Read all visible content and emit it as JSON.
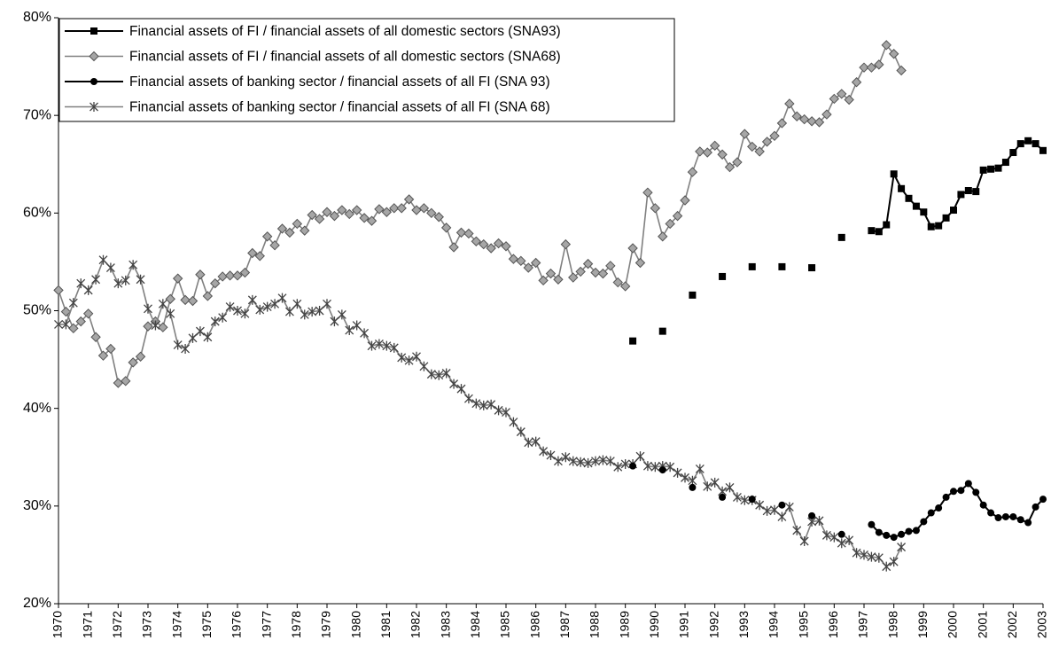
{
  "chart_data": {
    "type": "line",
    "x": [
      1970,
      1970.25,
      1970.5,
      1970.75,
      1971,
      1971.25,
      1971.5,
      1971.75,
      1972,
      1972.25,
      1972.5,
      1972.75,
      1973,
      1973.25,
      1973.5,
      1973.75,
      1974,
      1974.25,
      1974.5,
      1974.75,
      1975,
      1975.25,
      1975.5,
      1975.75,
      1976,
      1976.25,
      1976.5,
      1976.75,
      1977,
      1977.25,
      1977.5,
      1977.75,
      1978,
      1978.25,
      1978.5,
      1978.75,
      1979,
      1979.25,
      1979.5,
      1979.75,
      1980,
      1980.25,
      1980.5,
      1980.75,
      1981,
      1981.25,
      1981.5,
      1981.75,
      1982,
      1982.25,
      1982.5,
      1982.75,
      1983,
      1983.25,
      1983.5,
      1983.75,
      1984,
      1984.25,
      1984.5,
      1984.75,
      1985,
      1985.25,
      1985.5,
      1985.75,
      1986,
      1986.25,
      1986.5,
      1986.75,
      1987,
      1987.25,
      1987.5,
      1987.75,
      1988,
      1988.25,
      1988.5,
      1988.75,
      1989,
      1989.25,
      1989.5,
      1989.75,
      1990,
      1990.25,
      1990.5,
      1990.75,
      1991,
      1991.25,
      1991.5,
      1991.75,
      1992,
      1992.25,
      1992.5,
      1992.75,
      1993,
      1993.25,
      1993.5,
      1993.75,
      1994,
      1994.25,
      1994.5,
      1994.75,
      1995,
      1995.25,
      1995.5,
      1995.75,
      1996,
      1996.25,
      1996.5,
      1996.75,
      1997,
      1997.25,
      1997.5,
      1997.75,
      1998,
      1998.25,
      1998.5,
      1998.75,
      1999,
      1999.25,
      1999.5,
      1999.75,
      2000,
      2000.25,
      2000.5,
      2000.75,
      2001,
      2001.25,
      2001.5,
      2001.75,
      2002,
      2002.25,
      2002.5,
      2002.75,
      2003
    ],
    "xlim": [
      1970,
      2003
    ],
    "xticks": [
      1970,
      1971,
      1972,
      1973,
      1974,
      1975,
      1976,
      1977,
      1978,
      1979,
      1980,
      1981,
      1982,
      1983,
      1984,
      1985,
      1986,
      1987,
      1988,
      1989,
      1990,
      1991,
      1992,
      1993,
      1994,
      1995,
      1996,
      1997,
      1998,
      1999,
      2000,
      2001,
      2002,
      2003
    ],
    "ylim": [
      20,
      80
    ],
    "yticks": [
      {
        "value": 20,
        "label": "20%"
      },
      {
        "value": 30,
        "label": "30%"
      },
      {
        "value": 40,
        "label": "40%"
      },
      {
        "value": 50,
        "label": "50%"
      },
      {
        "value": 60,
        "label": "60%"
      },
      {
        "value": 70,
        "label": "70%"
      },
      {
        "value": 80,
        "label": "80%"
      }
    ],
    "legend": "upper left",
    "series": [
      {
        "name": "Financial assets of FI / financial assets of all domestic sectors (SNA93)",
        "color": "#000000",
        "marker": "square",
        "values": [
          null,
          null,
          null,
          null,
          null,
          null,
          null,
          null,
          null,
          null,
          null,
          null,
          null,
          null,
          null,
          null,
          null,
          null,
          null,
          null,
          null,
          null,
          null,
          null,
          null,
          null,
          null,
          null,
          null,
          null,
          null,
          null,
          null,
          null,
          null,
          null,
          null,
          null,
          null,
          null,
          null,
          null,
          null,
          null,
          null,
          null,
          null,
          null,
          null,
          null,
          null,
          null,
          null,
          null,
          null,
          null,
          null,
          null,
          null,
          null,
          null,
          null,
          null,
          null,
          null,
          null,
          null,
          null,
          null,
          null,
          null,
          null,
          null,
          null,
          null,
          null,
          null,
          46.9,
          null,
          null,
          null,
          47.9,
          null,
          null,
          null,
          51.6,
          null,
          null,
          null,
          53.5,
          null,
          null,
          null,
          54.5,
          null,
          null,
          null,
          54.5,
          null,
          null,
          null,
          54.4,
          null,
          null,
          null,
          57.5,
          null,
          null,
          null,
          58.2,
          58.1,
          58.8,
          64.0,
          62.5,
          61.5,
          60.7,
          60.1,
          58.6,
          58.7,
          59.5,
          60.3,
          61.9,
          62.3,
          62.2,
          64.4,
          64.5,
          64.6,
          65.2,
          66.2,
          67.1,
          67.4,
          67.1,
          66.4
        ]
      },
      {
        "name": "Financial assets of FI / financial assets of all domestic sectors (SNA68)",
        "color": "#808080",
        "marker": "diamond",
        "values": [
          52.1,
          49.9,
          48.2,
          48.9,
          49.7,
          47.3,
          45.4,
          46.1,
          42.6,
          42.8,
          44.7,
          45.3,
          48.4,
          48.9,
          48.3,
          51.2,
          53.3,
          51.1,
          51.0,
          53.7,
          51.5,
          52.8,
          53.5,
          53.6,
          53.6,
          53.9,
          55.9,
          55.6,
          57.6,
          56.7,
          58.4,
          58.0,
          58.9,
          58.2,
          59.8,
          59.4,
          60.1,
          59.7,
          60.3,
          59.9,
          60.3,
          59.5,
          59.2,
          60.4,
          60.1,
          60.5,
          60.5,
          61.4,
          60.3,
          60.5,
          60.0,
          59.6,
          58.5,
          56.5,
          58.0,
          57.9,
          57.1,
          56.8,
          56.4,
          56.9,
          56.6,
          55.3,
          55.1,
          54.4,
          54.9,
          53.1,
          53.8,
          53.2,
          56.8,
          53.4,
          54.0,
          54.8,
          53.9,
          53.8,
          54.6,
          52.9,
          52.5,
          56.4,
          54.9,
          62.1,
          60.5,
          57.6,
          58.9,
          59.7,
          61.3,
          64.2,
          66.3,
          66.2,
          66.9,
          66.0,
          64.7,
          65.2,
          68.1,
          66.8,
          66.3,
          67.3,
          67.9,
          69.2,
          71.2,
          69.9,
          69.6,
          69.4,
          69.3,
          70.1,
          71.7,
          72.2,
          71.6,
          73.4,
          74.9,
          74.9,
          75.2,
          77.2,
          76.3,
          74.6,
          null,
          null,
          null,
          null,
          null,
          null,
          null,
          null,
          null,
          null,
          null,
          null,
          null,
          null,
          null,
          null,
          null,
          null,
          null
        ]
      },
      {
        "name": "Financial assets of banking sector / financial assets of all FI (SNA 93)",
        "color": "#000000",
        "marker": "circle",
        "values": [
          null,
          null,
          null,
          null,
          null,
          null,
          null,
          null,
          null,
          null,
          null,
          null,
          null,
          null,
          null,
          null,
          null,
          null,
          null,
          null,
          null,
          null,
          null,
          null,
          null,
          null,
          null,
          null,
          null,
          null,
          null,
          null,
          null,
          null,
          null,
          null,
          null,
          null,
          null,
          null,
          null,
          null,
          null,
          null,
          null,
          null,
          null,
          null,
          null,
          null,
          null,
          null,
          null,
          null,
          null,
          null,
          null,
          null,
          null,
          null,
          null,
          null,
          null,
          null,
          null,
          null,
          null,
          null,
          null,
          null,
          null,
          null,
          null,
          null,
          null,
          null,
          null,
          34.1,
          null,
          null,
          null,
          33.7,
          null,
          null,
          null,
          31.9,
          null,
          null,
          null,
          30.9,
          null,
          null,
          null,
          30.7,
          null,
          null,
          null,
          30.1,
          null,
          null,
          null,
          29.0,
          null,
          null,
          null,
          27.1,
          null,
          null,
          null,
          28.1,
          27.3,
          27.0,
          26.8,
          27.1,
          27.4,
          27.5,
          28.4,
          29.3,
          29.8,
          30.9,
          31.5,
          31.6,
          32.3,
          31.4,
          30.1,
          29.3,
          28.8,
          28.9,
          28.9,
          28.6,
          28.3,
          29.9,
          30.7
        ]
      },
      {
        "name": "Financial assets of banking sector / financial assets of all FI (SNA 68)",
        "color": "#808080",
        "marker": "star",
        "values": [
          48.6,
          48.6,
          50.8,
          52.8,
          52.1,
          53.2,
          55.2,
          54.4,
          52.8,
          53.1,
          54.7,
          53.2,
          50.2,
          48.5,
          50.7,
          49.7,
          46.5,
          46.1,
          47.2,
          47.9,
          47.3,
          48.9,
          49.3,
          50.4,
          50.0,
          49.7,
          51.1,
          50.1,
          50.4,
          50.7,
          51.3,
          49.9,
          50.7,
          49.6,
          49.9,
          50.0,
          50.7,
          48.9,
          49.6,
          48.0,
          48.5,
          47.7,
          46.4,
          46.6,
          46.4,
          46.2,
          45.2,
          44.9,
          45.3,
          44.3,
          43.5,
          43.4,
          43.6,
          42.5,
          42.0,
          41.0,
          40.5,
          40.3,
          40.4,
          39.8,
          39.6,
          38.6,
          37.6,
          36.5,
          36.6,
          35.6,
          35.2,
          34.6,
          35.0,
          34.6,
          34.5,
          34.4,
          34.6,
          34.7,
          34.6,
          34.0,
          34.3,
          34.3,
          35.1,
          34.1,
          34.0,
          34.1,
          34.0,
          33.4,
          32.9,
          32.6,
          33.8,
          32.0,
          32.4,
          31.5,
          31.9,
          30.9,
          30.6,
          30.6,
          30.1,
          29.5,
          29.6,
          28.9,
          29.9,
          27.5,
          26.4,
          28.4,
          28.5,
          27.0,
          26.8,
          26.2,
          26.5,
          25.2,
          25.0,
          24.8,
          24.7,
          23.8,
          24.3,
          25.8,
          null,
          null,
          null,
          null,
          null,
          null,
          null,
          null,
          null,
          null,
          null,
          null,
          null,
          null,
          null,
          null,
          null,
          null,
          null
        ]
      }
    ]
  }
}
